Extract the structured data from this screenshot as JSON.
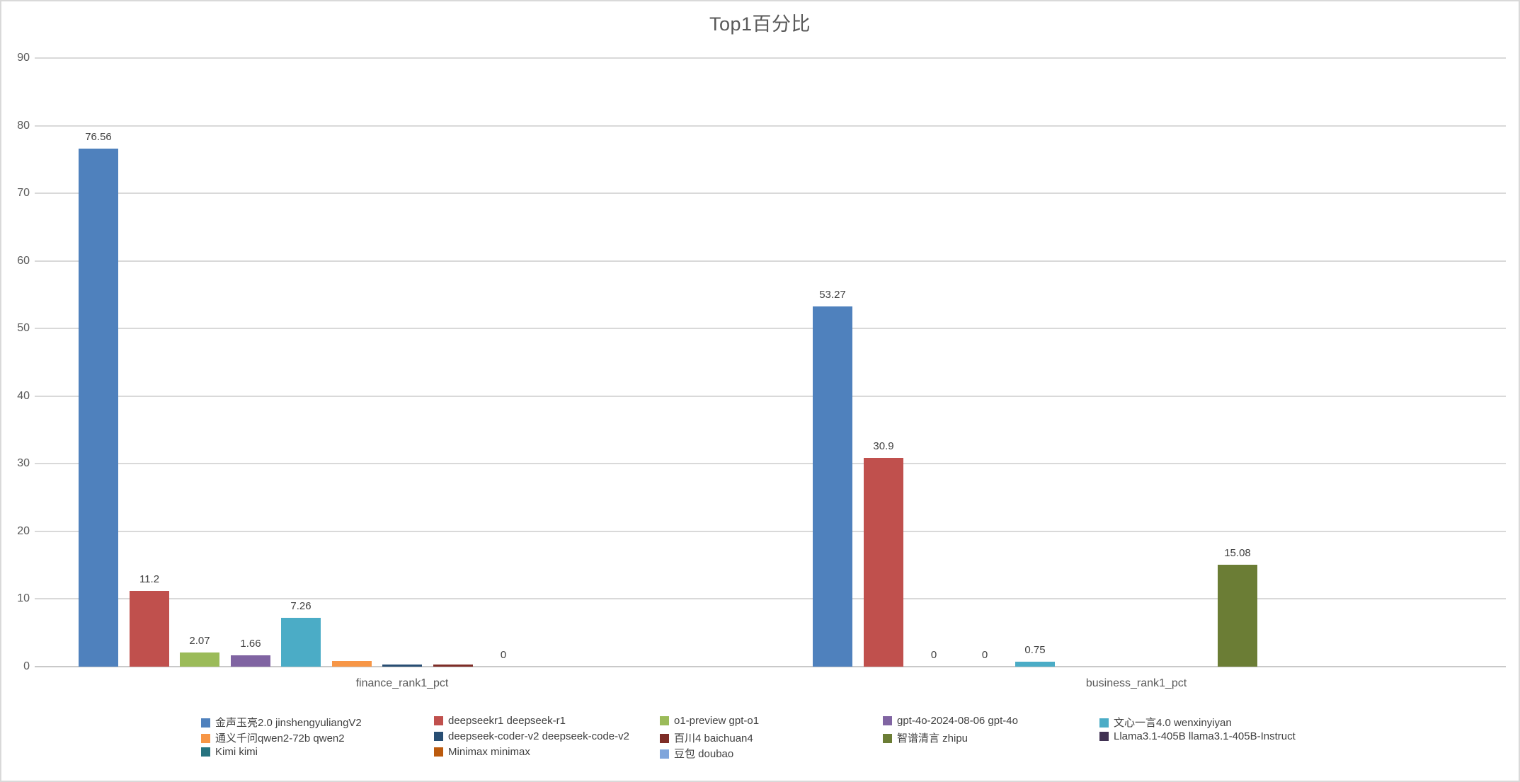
{
  "chart_data": {
    "type": "bar",
    "title": "Top1百分比",
    "categories": [
      "finance_rank1_pct",
      "business_rank1_pct"
    ],
    "ylim": [
      0,
      90
    ],
    "yticks": [
      0,
      10,
      20,
      30,
      40,
      50,
      60,
      70,
      80,
      90
    ],
    "grid": true,
    "legend_position": "bottom",
    "series": [
      {
        "name": "金声玉亮2.0 jinshengyuliangV2",
        "color": "#4F81BD",
        "values": [
          76.56,
          53.27
        ],
        "labels": [
          "76.56",
          "53.27"
        ]
      },
      {
        "name": "deepseekr1 deepseek-r1",
        "color": "#C0504D",
        "values": [
          11.2,
          30.9
        ],
        "labels": [
          "11.2",
          "30.9"
        ]
      },
      {
        "name": "o1-preview gpt-o1",
        "color": "#9BBB59",
        "values": [
          2.07,
          0
        ],
        "labels": [
          "2.07",
          "0"
        ]
      },
      {
        "name": "gpt-4o-2024-08-06 gpt-4o",
        "color": "#8064A2",
        "values": [
          1.66,
          0
        ],
        "labels": [
          "1.66",
          "0"
        ]
      },
      {
        "name": "文心一言4.0 wenxinyiyan",
        "color": "#4BACC6",
        "values": [
          7.26,
          0.75
        ],
        "labels": [
          "7.26",
          "0.75"
        ]
      },
      {
        "name": "通义千问qwen2-72b qwen2",
        "color": "#F79646",
        "values": [
          0.8,
          0
        ],
        "labels": null
      },
      {
        "name": "deepseek-coder-v2 deepseek-code-v2",
        "color": "#284E73",
        "values": [
          0.3,
          0
        ],
        "labels": null
      },
      {
        "name": "百川4 baichuan4",
        "color": "#7E2D27",
        "values": [
          0.3,
          0
        ],
        "labels": null
      },
      {
        "name": "智谱清言 zhipu",
        "color": "#6B7D35",
        "values": [
          0,
          15.08
        ],
        "labels": [
          "0",
          "15.08"
        ]
      },
      {
        "name": "Llama3.1-405B llama3.1-405B-Instruct",
        "color": "#403152",
        "values": [
          0,
          0
        ],
        "labels": null
      },
      {
        "name": "Kimi kimi",
        "color": "#26737F",
        "values": [
          0,
          0
        ],
        "labels": null
      },
      {
        "name": "Minimax minimax",
        "color": "#BB5A0D",
        "values": [
          0,
          0
        ],
        "labels": null
      },
      {
        "name": "豆包 doubao",
        "color": "#7FA5DB",
        "values": [
          0,
          0
        ],
        "labels": null
      }
    ]
  }
}
